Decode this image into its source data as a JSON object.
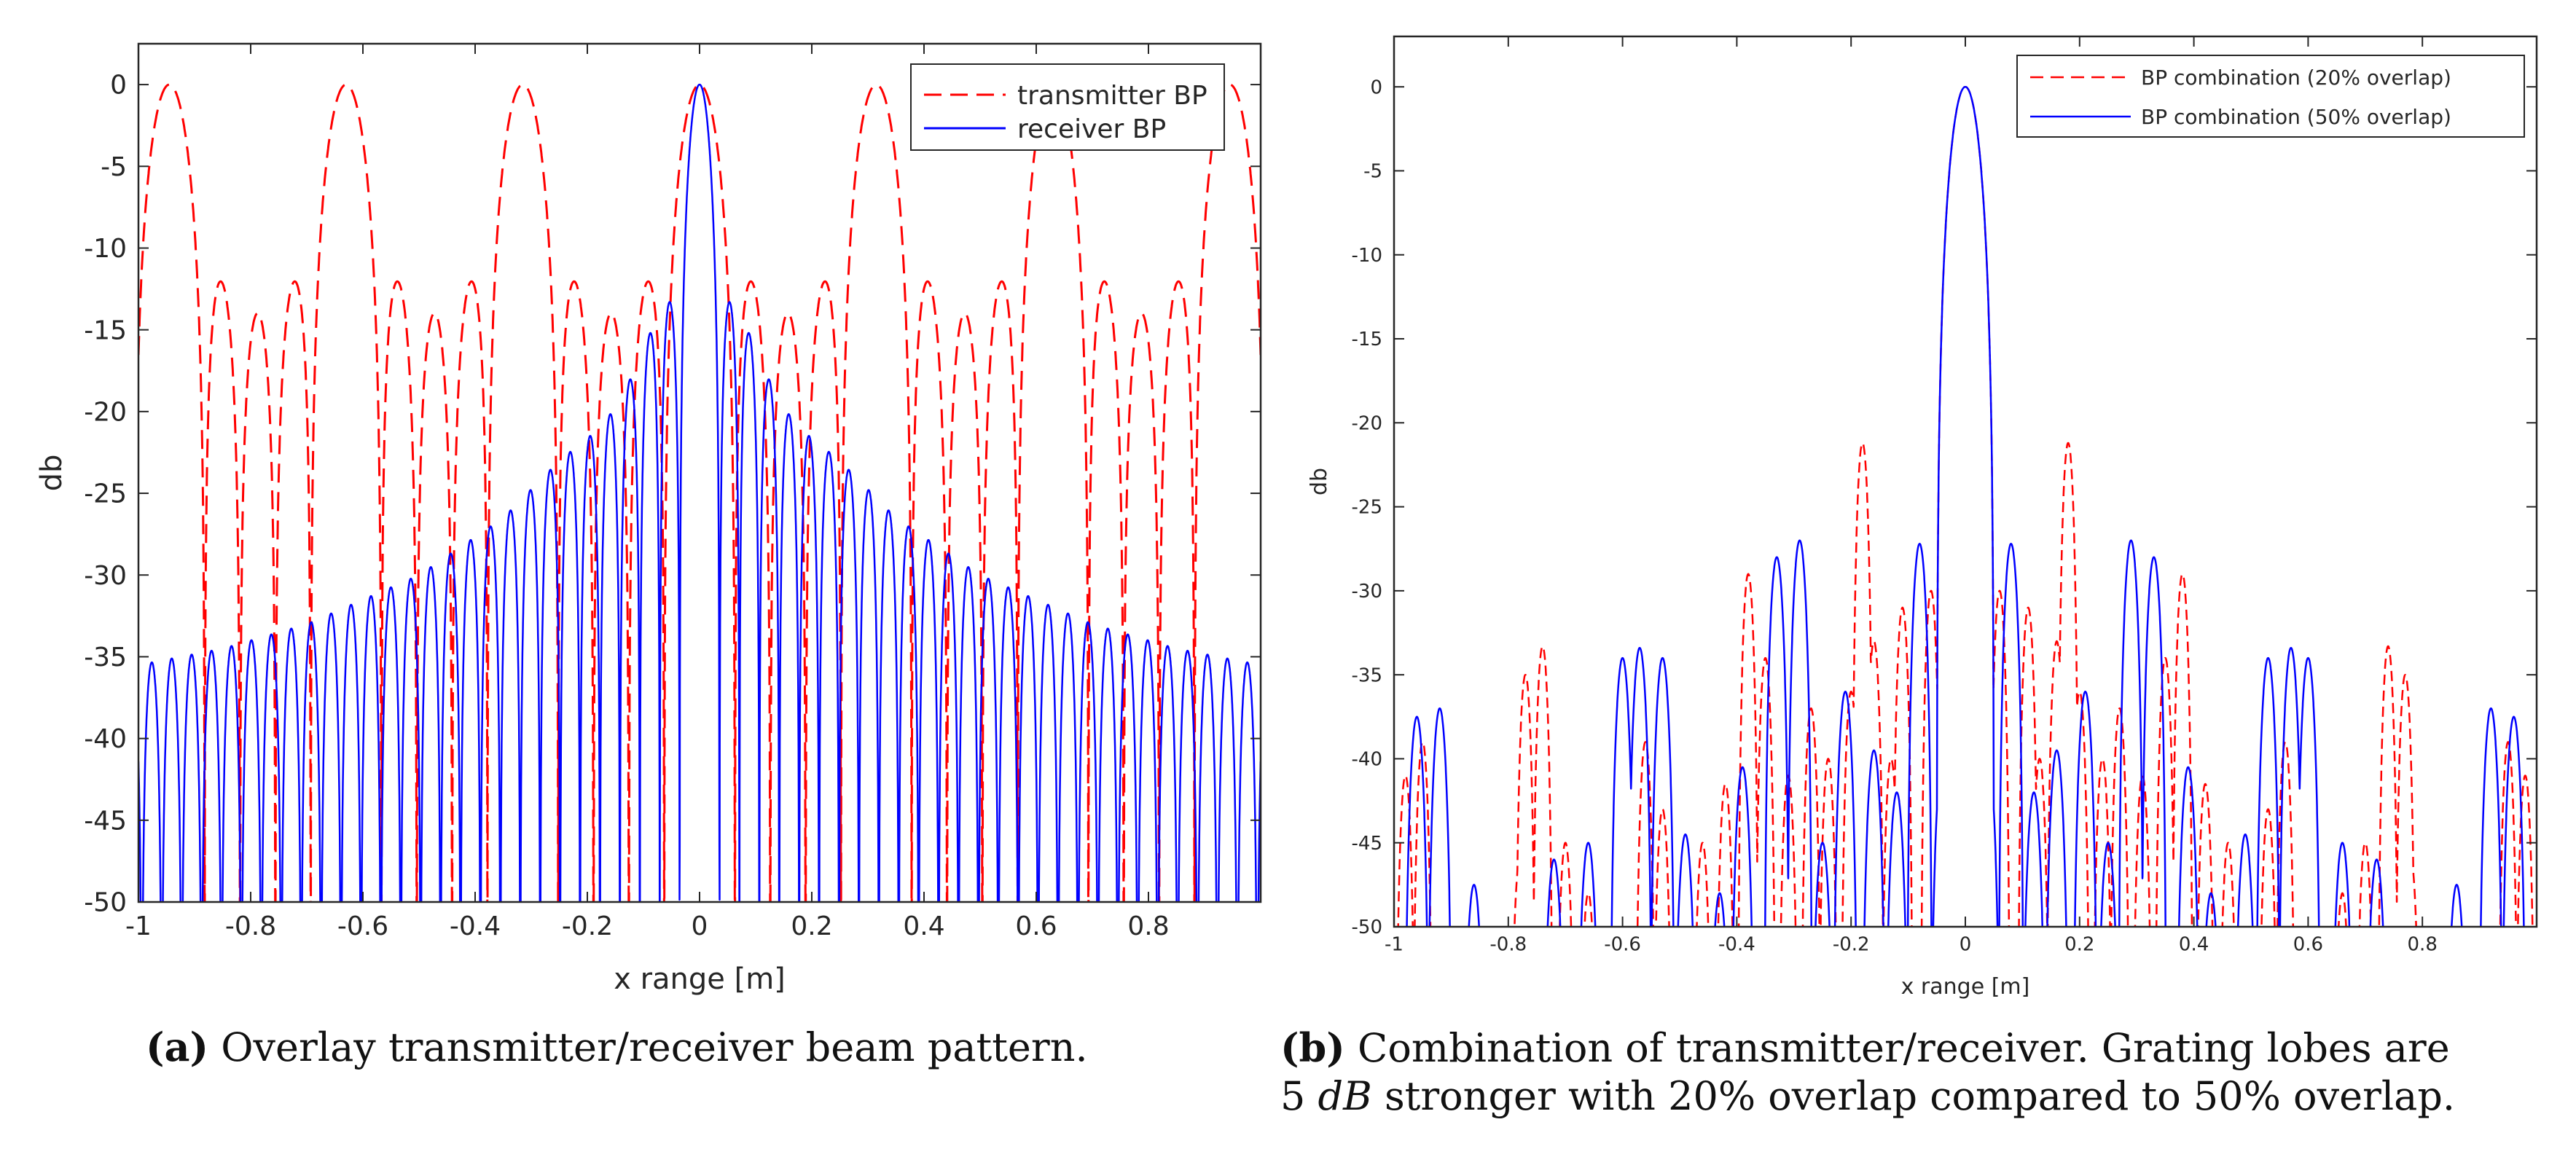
{
  "chart_data": [
    {
      "type": "line",
      "panel": "a",
      "xlabel": "x range [m]",
      "ylabel": "db",
      "xlim": [
        -1,
        1
      ],
      "ylim": [
        -50,
        2.5
      ],
      "grid": false,
      "legend_position": "top-right",
      "xticks": [
        -1,
        -0.8,
        -0.6,
        -0.4,
        -0.2,
        0,
        0.2,
        0.4,
        0.6,
        0.8
      ],
      "xtick_labels": [
        "-1",
        "-0.8",
        "-0.6",
        "-0.4",
        "-0.2",
        "0",
        "0.2",
        "0.4",
        "0.6",
        "0.8"
      ],
      "yticks": [
        0,
        -5,
        -10,
        -15,
        -20,
        -25,
        -30,
        -35,
        -40,
        -45,
        -50
      ],
      "ytick_labels": [
        "0",
        "-5",
        "-10",
        "-15",
        "-20",
        "-25",
        "-30",
        "-35",
        "-40",
        "-45",
        "-50"
      ],
      "series": [
        {
          "name": "transmitter BP",
          "color": "#ff0000",
          "style": "dashed",
          "main_peaks_x": [
            -0.95,
            -0.63,
            -0.315,
            0,
            0.315,
            0.63,
            0.95
          ],
          "peak_db": 0,
          "sidelobe_levels_db": [
            -13.3,
            -14.5,
            -14.5,
            -13.3
          ],
          "floor_db": -50
        },
        {
          "name": "receiver BP",
          "color": "#0000ff",
          "style": "solid",
          "main_peaks_x": [
            0
          ],
          "peak_db": 0,
          "sidelobe_envelope_db": [
            [
              0.065,
              -13.3
            ],
            [
              0.12,
              -17.8
            ],
            [
              0.17,
              -20.8
            ],
            [
              0.25,
              -23.0
            ],
            [
              0.35,
              -26.5
            ],
            [
              0.5,
              -30.0
            ],
            [
              0.7,
              -33.0
            ],
            [
              0.85,
              -34.5
            ],
            [
              1.0,
              -35.5
            ]
          ],
          "sidelobe_spacing": 0.0355,
          "floor_db": -50
        }
      ]
    },
    {
      "type": "line",
      "panel": "b",
      "xlabel": "x range [m]",
      "ylabel": "db",
      "xlim": [
        -1,
        1
      ],
      "ylim": [
        -50,
        3
      ],
      "grid": false,
      "legend_position": "top-right",
      "xticks": [
        -1,
        -0.8,
        -0.6,
        -0.4,
        -0.2,
        0,
        0.2,
        0.4,
        0.6,
        0.8
      ],
      "xtick_labels": [
        "-1",
        "-0.8",
        "-0.6",
        "-0.4",
        "-0.2",
        "0",
        "0.2",
        "0.4",
        "0.6",
        "0.8"
      ],
      "yticks": [
        0,
        -5,
        -10,
        -15,
        -20,
        -25,
        -30,
        -35,
        -40,
        -45,
        -50
      ],
      "ytick_labels": [
        "0",
        "-5",
        "-10",
        "-15",
        "-20",
        "-25",
        "-30",
        "-35",
        "-40",
        "-45",
        "-50"
      ],
      "series": [
        {
          "name": "BP combination (20% overlap)",
          "color": "#ff0000",
          "style": "dashed",
          "main_peak": [
            0,
            0
          ],
          "lobes": [
            [
              -0.98,
              -41
            ],
            [
              -0.95,
              -39
            ],
            [
              -0.78,
              -46
            ],
            [
              -0.77,
              -35
            ],
            [
              -0.74,
              -33.3
            ],
            [
              -0.7,
              -45
            ],
            [
              -0.66,
              -48
            ],
            [
              -0.56,
              -39
            ],
            [
              -0.53,
              -43
            ],
            [
              -0.46,
              -45
            ],
            [
              -0.42,
              -41.5
            ],
            [
              -0.38,
              -29
            ],
            [
              -0.35,
              -34
            ],
            [
              -0.31,
              -41
            ],
            [
              -0.27,
              -37
            ],
            [
              -0.24,
              -40
            ],
            [
              -0.2,
              -36
            ],
            [
              -0.18,
              -21.2
            ],
            [
              -0.16,
              -33
            ],
            [
              -0.13,
              -40
            ],
            [
              -0.11,
              -31
            ],
            [
              -0.06,
              -30
            ],
            [
              -0.03,
              -32
            ],
            [
              0.03,
              -32
            ],
            [
              0.06,
              -30
            ],
            [
              0.11,
              -31
            ],
            [
              0.13,
              -40
            ],
            [
              0.16,
              -33
            ],
            [
              0.18,
              -21.2
            ],
            [
              0.2,
              -36
            ],
            [
              0.24,
              -40
            ],
            [
              0.27,
              -37
            ],
            [
              0.31,
              -41
            ],
            [
              0.35,
              -34
            ],
            [
              0.38,
              -29
            ],
            [
              0.42,
              -41.5
            ],
            [
              0.46,
              -45
            ],
            [
              0.53,
              -43
            ],
            [
              0.56,
              -39
            ],
            [
              0.66,
              -48
            ],
            [
              0.7,
              -45
            ],
            [
              0.74,
              -33.3
            ],
            [
              0.77,
              -35
            ],
            [
              0.78,
              -46
            ],
            [
              0.95,
              -39
            ],
            [
              0.98,
              -41
            ]
          ]
        },
        {
          "name": "BP combination (50% overlap)",
          "color": "#0000ff",
          "style": "solid",
          "main_peak": [
            0,
            0
          ],
          "lobes": [
            [
              -0.96,
              -37.5
            ],
            [
              -0.92,
              -37
            ],
            [
              -0.86,
              -47.5
            ],
            [
              -0.72,
              -46
            ],
            [
              -0.66,
              -45
            ],
            [
              -0.6,
              -34
            ],
            [
              -0.57,
              -33.4
            ],
            [
              -0.53,
              -34
            ],
            [
              -0.49,
              -44.5
            ],
            [
              -0.43,
              -48
            ],
            [
              -0.39,
              -40.5
            ],
            [
              -0.33,
              -28
            ],
            [
              -0.29,
              -27
            ],
            [
              -0.25,
              -45
            ],
            [
              -0.21,
              -36
            ],
            [
              -0.16,
              -39.5
            ],
            [
              -0.12,
              -42
            ],
            [
              -0.08,
              -27.2
            ],
            [
              -0.04,
              -40
            ],
            [
              0.04,
              -40
            ],
            [
              0.08,
              -27.2
            ],
            [
              0.12,
              -42
            ],
            [
              0.16,
              -39.5
            ],
            [
              0.21,
              -36
            ],
            [
              0.25,
              -45
            ],
            [
              0.29,
              -27
            ],
            [
              0.33,
              -28
            ],
            [
              0.39,
              -40.5
            ],
            [
              0.43,
              -48
            ],
            [
              0.49,
              -44.5
            ],
            [
              0.53,
              -34
            ],
            [
              0.57,
              -33.4
            ],
            [
              0.6,
              -34
            ],
            [
              0.66,
              -45
            ],
            [
              0.72,
              -46
            ],
            [
              0.86,
              -47.5
            ],
            [
              0.92,
              -37
            ],
            [
              0.96,
              -37.5
            ]
          ]
        }
      ]
    }
  ],
  "captions": {
    "a": {
      "label": "(a)",
      "text": "Overlay transmitter/receiver beam pattern."
    },
    "b": {
      "label": "(b)",
      "line1": "Combination of transmitter/receiver. Grating lobes are",
      "line2_pre": "5 ",
      "line2_unit": "dB",
      "line2_post": " stronger with 20% overlap compared to 50% overlap."
    }
  }
}
